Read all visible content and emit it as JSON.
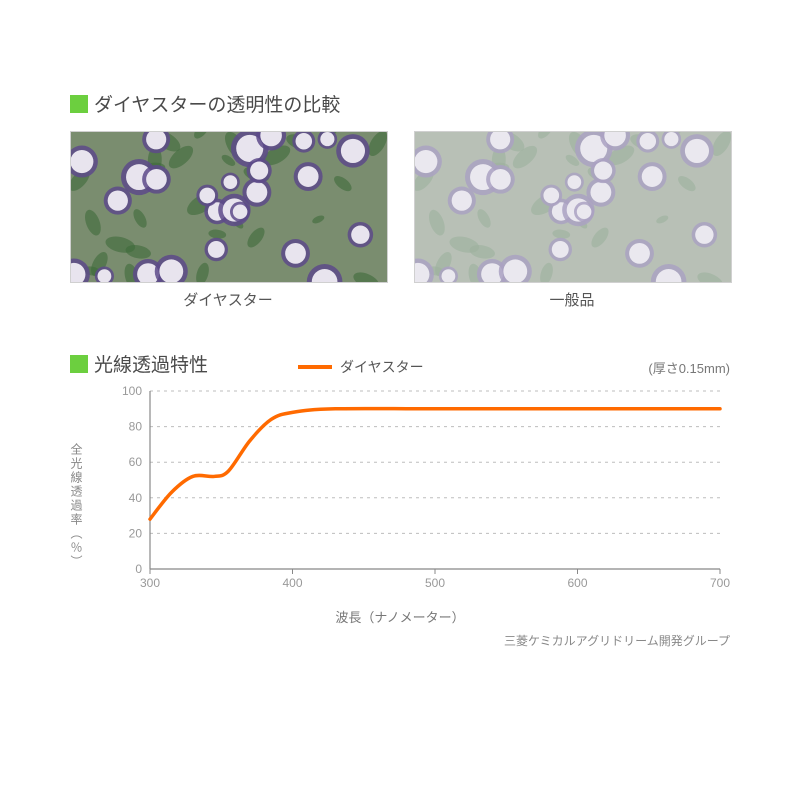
{
  "section1": {
    "title": "ダイヤスターの透明性の比較",
    "left_caption": "ダイヤスター",
    "right_caption": "一般品",
    "image_style": {
      "petal_color": "#e8e4ee",
      "accent_color": "#5d4a8a",
      "leaf_color": "#3d6b3a",
      "bg_color": "#7a8d6f",
      "border_color": "#d0d0d0",
      "haze_opacity_right": 0.55
    }
  },
  "section2": {
    "title": "光線透過特性",
    "legend_label": "ダイヤスター",
    "thickness_note": "(厚さ0.15mm)",
    "yaxis_label": "全光線透過率（％）",
    "xaxis_label": "波長（ナノメーター）",
    "source": "三菱ケミカルアグリドリーム開発グループ",
    "chart": {
      "type": "line",
      "xlim": [
        300,
        700
      ],
      "ylim": [
        0,
        100
      ],
      "xticks": [
        300,
        400,
        500,
        600,
        700
      ],
      "yticks": [
        0,
        20,
        40,
        60,
        80,
        100
      ],
      "grid_color": "#bdbdbd",
      "grid_dash": "3,4",
      "axis_color": "#888888",
      "background_color": "#ffffff",
      "line_color": "#ff6a00",
      "line_width": 3.5,
      "tick_fontsize": 12,
      "series": [
        {
          "x": 300,
          "y": 28
        },
        {
          "x": 315,
          "y": 43
        },
        {
          "x": 330,
          "y": 52
        },
        {
          "x": 345,
          "y": 52
        },
        {
          "x": 355,
          "y": 55
        },
        {
          "x": 370,
          "y": 72
        },
        {
          "x": 385,
          "y": 84
        },
        {
          "x": 400,
          "y": 88
        },
        {
          "x": 430,
          "y": 90
        },
        {
          "x": 500,
          "y": 90
        },
        {
          "x": 600,
          "y": 90
        },
        {
          "x": 700,
          "y": 90
        }
      ]
    }
  },
  "colors": {
    "marker_green": "#6ccf3f",
    "title_text": "#4a4a4a"
  }
}
